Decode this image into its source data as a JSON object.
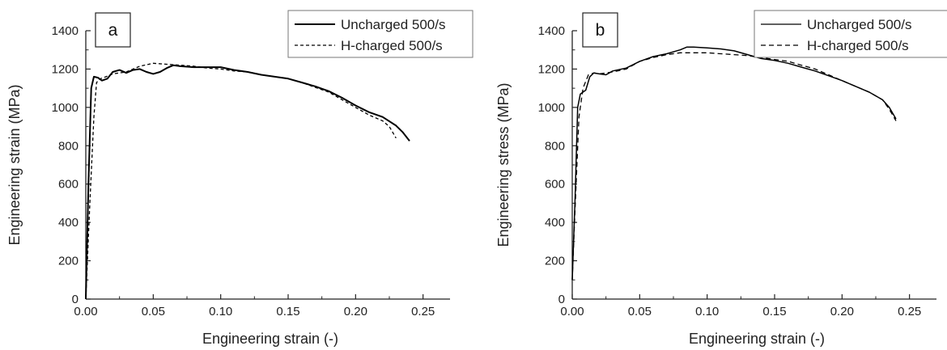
{
  "chart_data": [
    {
      "type": "line",
      "panel_label": "a",
      "xlabel": "Engineering strain (-)",
      "ylabel": "Engineering strain (MPa)",
      "xlim": [
        0,
        0.27
      ],
      "ylim": [
        0,
        1400
      ],
      "x_ticks": [
        "0.00",
        "0.05",
        "0.10",
        "0.15",
        "0.20",
        "0.25"
      ],
      "y_ticks": [
        "0",
        "200",
        "400",
        "600",
        "800",
        "1000",
        "1200",
        "1400"
      ],
      "grid": false,
      "legend_position": "top-right",
      "series": [
        {
          "name": "Uncharged 500/s",
          "style": "solid",
          "points": [
            [
              0,
              0
            ],
            [
              0.002,
              600
            ],
            [
              0.004,
              1100
            ],
            [
              0.006,
              1160
            ],
            [
              0.009,
              1155
            ],
            [
              0.012,
              1140
            ],
            [
              0.016,
              1150
            ],
            [
              0.02,
              1185
            ],
            [
              0.025,
              1195
            ],
            [
              0.03,
              1180
            ],
            [
              0.035,
              1195
            ],
            [
              0.04,
              1200
            ],
            [
              0.045,
              1185
            ],
            [
              0.05,
              1175
            ],
            [
              0.055,
              1185
            ],
            [
              0.06,
              1205
            ],
            [
              0.065,
              1220
            ],
            [
              0.07,
              1215
            ],
            [
              0.08,
              1210
            ],
            [
              0.09,
              1210
            ],
            [
              0.1,
              1210
            ],
            [
              0.11,
              1195
            ],
            [
              0.12,
              1185
            ],
            [
              0.13,
              1170
            ],
            [
              0.14,
              1160
            ],
            [
              0.15,
              1150
            ],
            [
              0.16,
              1130
            ],
            [
              0.17,
              1110
            ],
            [
              0.18,
              1085
            ],
            [
              0.19,
              1050
            ],
            [
              0.2,
              1010
            ],
            [
              0.21,
              975
            ],
            [
              0.22,
              950
            ],
            [
              0.23,
              905
            ],
            [
              0.235,
              870
            ],
            [
              0.24,
              825
            ]
          ]
        },
        {
          "name": "H-charged 500/s",
          "style": "dashed",
          "points": [
            [
              0,
              0
            ],
            [
              0.003,
              500
            ],
            [
              0.006,
              950
            ],
            [
              0.008,
              1130
            ],
            [
              0.011,
              1150
            ],
            [
              0.015,
              1160
            ],
            [
              0.02,
              1175
            ],
            [
              0.03,
              1185
            ],
            [
              0.04,
              1215
            ],
            [
              0.05,
              1230
            ],
            [
              0.06,
              1225
            ],
            [
              0.07,
              1220
            ],
            [
              0.08,
              1215
            ],
            [
              0.09,
              1205
            ],
            [
              0.1,
              1200
            ],
            [
              0.11,
              1190
            ],
            [
              0.12,
              1185
            ],
            [
              0.13,
              1170
            ],
            [
              0.14,
              1160
            ],
            [
              0.15,
              1150
            ],
            [
              0.16,
              1130
            ],
            [
              0.17,
              1105
            ],
            [
              0.18,
              1080
            ],
            [
              0.19,
              1040
            ],
            [
              0.2,
              1000
            ],
            [
              0.21,
              960
            ],
            [
              0.22,
              930
            ],
            [
              0.225,
              900
            ],
            [
              0.23,
              840
            ]
          ]
        }
      ]
    },
    {
      "type": "line",
      "panel_label": "b",
      "xlabel": "Engineering strain (-)",
      "ylabel": "Engineering stress (MPa)",
      "xlim": [
        0,
        0.27
      ],
      "ylim": [
        0,
        1400
      ],
      "x_ticks": [
        "0.00",
        "0.05",
        "0.10",
        "0.15",
        "0.20",
        "0.25"
      ],
      "y_ticks": [
        "0",
        "200",
        "400",
        "600",
        "800",
        "1000",
        "1200",
        "1400"
      ],
      "grid": false,
      "legend_position": "top-right",
      "series": [
        {
          "name": "Uncharged 500/s",
          "style": "solid",
          "points": [
            [
              0,
              100
            ],
            [
              0.002,
              500
            ],
            [
              0.004,
              1000
            ],
            [
              0.006,
              1070
            ],
            [
              0.01,
              1090
            ],
            [
              0.013,
              1160
            ],
            [
              0.016,
              1180
            ],
            [
              0.02,
              1175
            ],
            [
              0.025,
              1170
            ],
            [
              0.03,
              1190
            ],
            [
              0.04,
              1205
            ],
            [
              0.05,
              1240
            ],
            [
              0.06,
              1265
            ],
            [
              0.07,
              1280
            ],
            [
              0.08,
              1300
            ],
            [
              0.085,
              1315
            ],
            [
              0.09,
              1315
            ],
            [
              0.1,
              1310
            ],
            [
              0.11,
              1305
            ],
            [
              0.12,
              1295
            ],
            [
              0.13,
              1275
            ],
            [
              0.14,
              1255
            ],
            [
              0.15,
              1245
            ],
            [
              0.16,
              1230
            ],
            [
              0.17,
              1210
            ],
            [
              0.18,
              1190
            ],
            [
              0.19,
              1165
            ],
            [
              0.2,
              1140
            ],
            [
              0.21,
              1110
            ],
            [
              0.22,
              1080
            ],
            [
              0.23,
              1040
            ],
            [
              0.235,
              1000
            ],
            [
              0.24,
              940
            ]
          ]
        },
        {
          "name": "H-charged 500/s",
          "style": "dashed",
          "points": [
            [
              0,
              100
            ],
            [
              0.002,
              450
            ],
            [
              0.005,
              950
            ],
            [
              0.008,
              1100
            ],
            [
              0.012,
              1170
            ],
            [
              0.016,
              1180
            ],
            [
              0.02,
              1175
            ],
            [
              0.03,
              1185
            ],
            [
              0.04,
              1200
            ],
            [
              0.05,
              1240
            ],
            [
              0.06,
              1260
            ],
            [
              0.07,
              1275
            ],
            [
              0.08,
              1285
            ],
            [
              0.09,
              1285
            ],
            [
              0.1,
              1285
            ],
            [
              0.11,
              1280
            ],
            [
              0.12,
              1275
            ],
            [
              0.13,
              1270
            ],
            [
              0.14,
              1260
            ],
            [
              0.15,
              1250
            ],
            [
              0.16,
              1240
            ],
            [
              0.17,
              1220
            ],
            [
              0.18,
              1200
            ],
            [
              0.19,
              1170
            ],
            [
              0.2,
              1140
            ],
            [
              0.21,
              1110
            ],
            [
              0.22,
              1080
            ],
            [
              0.23,
              1040
            ],
            [
              0.235,
              990
            ],
            [
              0.24,
              930
            ]
          ]
        }
      ]
    }
  ]
}
